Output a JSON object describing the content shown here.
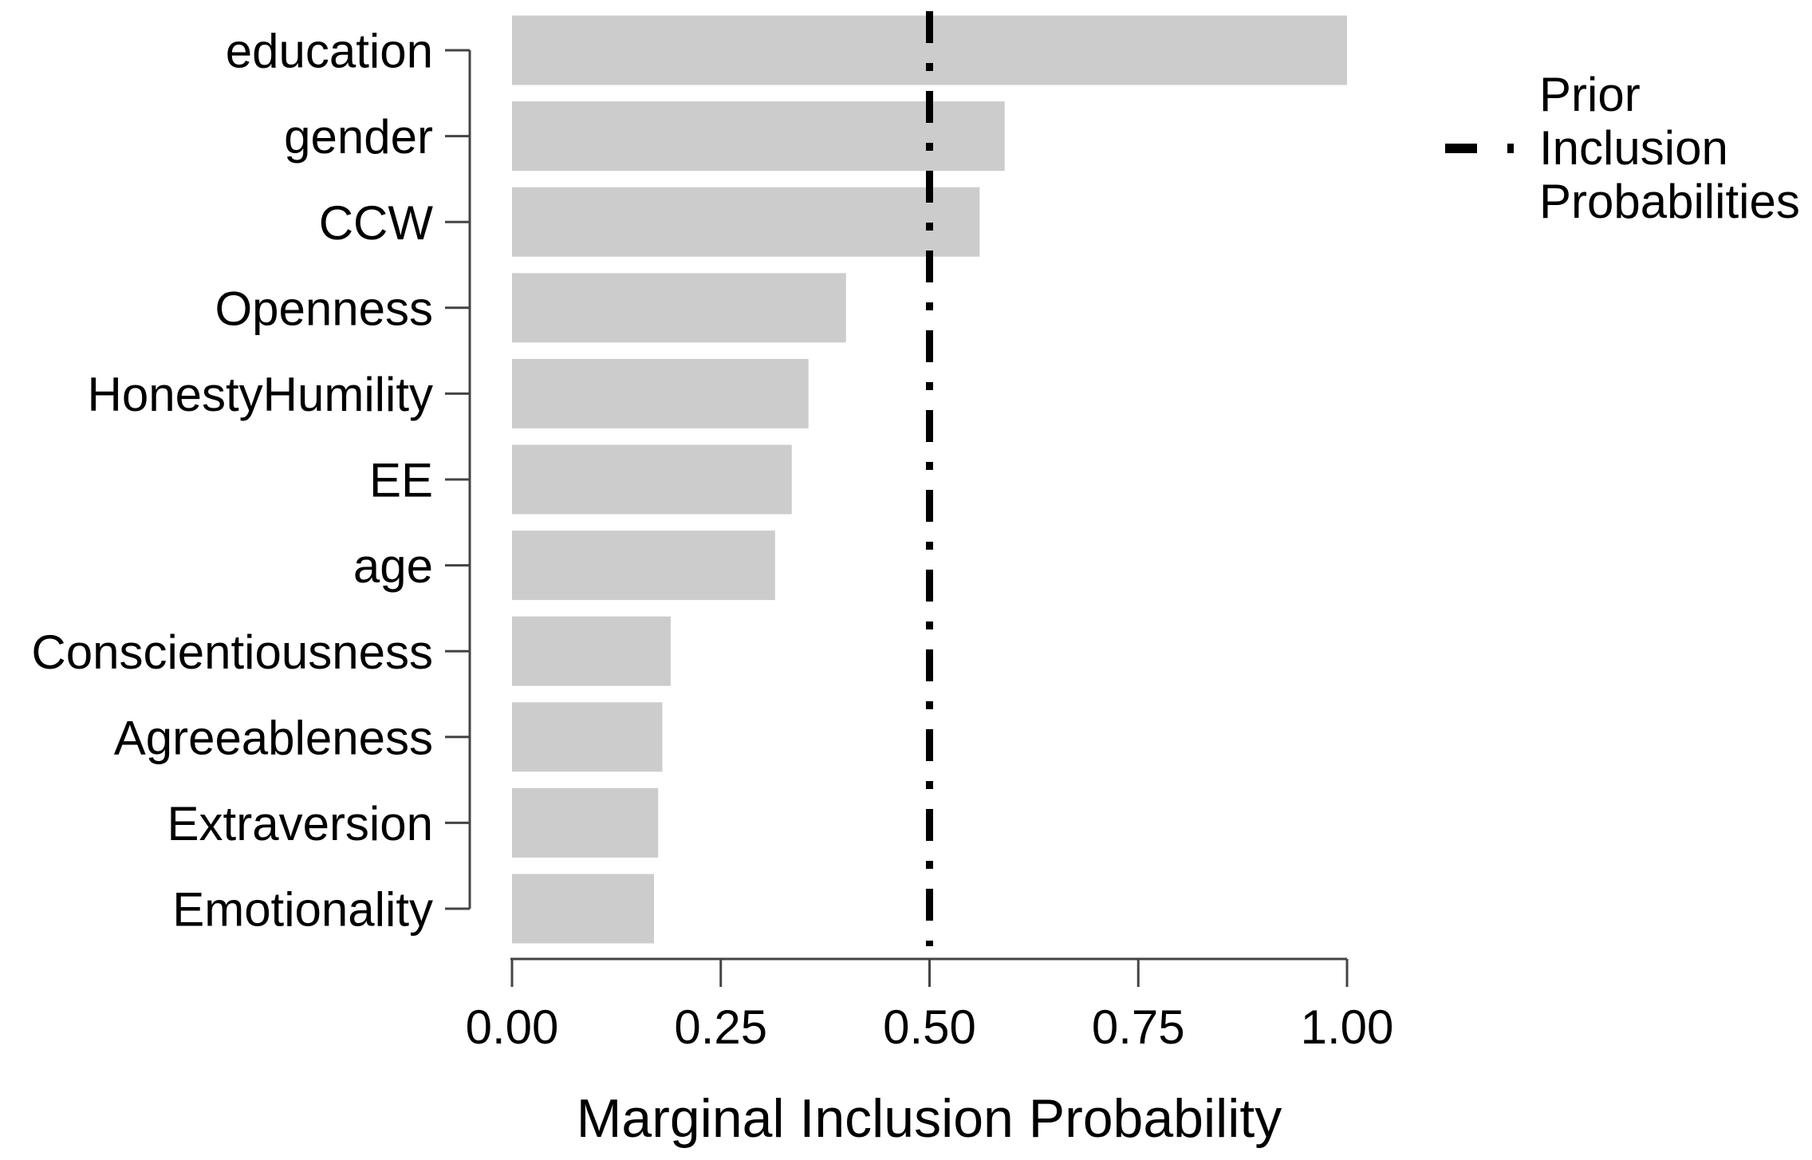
{
  "chart_data": {
    "type": "bar",
    "orientation": "horizontal",
    "title": "",
    "xlabel": "Marginal Inclusion Probability",
    "ylabel": "",
    "xlim": [
      0,
      1
    ],
    "grid": false,
    "categories": [
      "education",
      "gender",
      "CCW",
      "Openness",
      "HonestyHumility",
      "EE",
      "age",
      "Conscientiousness",
      "Agreeableness",
      "Extraversion",
      "Emotionality"
    ],
    "values": [
      1.0,
      0.59,
      0.56,
      0.4,
      0.355,
      0.335,
      0.315,
      0.19,
      0.18,
      0.175,
      0.17
    ],
    "xticks": {
      "values": [
        0,
        0.25,
        0.5,
        0.75,
        1
      ],
      "labels": [
        "0.00",
        "0.25",
        "0.50",
        "0.75",
        "1.00"
      ]
    },
    "reference_line": {
      "x": 0.5,
      "style": "dash-dot",
      "color": "#000000"
    },
    "legend": {
      "position": "right",
      "symbol": "dash-dot-line",
      "label": "Prior Inclusion Probabilities",
      "lines": [
        "Prior",
        "Inclusion",
        "Probabilities"
      ]
    },
    "bar_color": "#cccccc",
    "axis_color": "#444444",
    "line_color": "#000000",
    "text_color": "#000000"
  }
}
